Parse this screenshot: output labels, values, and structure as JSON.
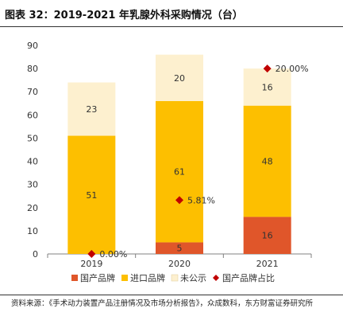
{
  "header": {
    "title": "图表 32：2019-2021 年乳腺外科采购情况（台）"
  },
  "footer": {
    "source": "资料来源：《手术动力装置产品注册情况及市场分析报告》，众成数科，东方财富证券研究所"
  },
  "colors": {
    "domestic": "#e0562a",
    "imported": "#fdbf00",
    "undisclosed": "#fdf0cf",
    "share_marker": "#c00000",
    "axis": "#808080",
    "grid": "#d9d9d9"
  },
  "chart_data": {
    "type": "bar",
    "stacked": true,
    "categories": [
      "2019",
      "2020",
      "2021"
    ],
    "series": [
      {
        "name": "国产品牌",
        "values": [
          0,
          5,
          16
        ],
        "color": "#e0562a"
      },
      {
        "name": "进口品牌",
        "values": [
          51,
          61,
          48
        ],
        "color": "#fdbf00"
      },
      {
        "name": "未公示",
        "values": [
          23,
          20,
          16
        ],
        "color": "#fdf0cf"
      }
    ],
    "share_series": {
      "name": "国产品牌占比",
      "values": [
        0.0,
        5.81,
        20.0
      ],
      "labels": [
        "0.00%",
        "5.81%",
        "20.00%"
      ],
      "marker": "diamond"
    },
    "ylim": [
      0,
      90
    ],
    "yticks": [
      0,
      10,
      20,
      30,
      40,
      50,
      60,
      70,
      80,
      90
    ],
    "grid": false,
    "legend_position": "bottom",
    "title": "图表 32：2019-2021 年乳腺外科采购情况（台）",
    "xlabel": "",
    "ylabel": ""
  }
}
